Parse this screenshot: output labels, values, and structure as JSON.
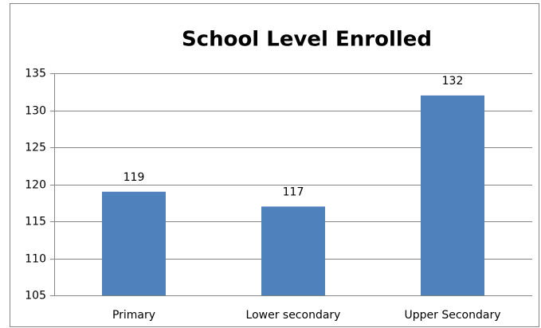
{
  "chart_data": {
    "type": "bar",
    "title": "School Level Enrolled",
    "categories": [
      "Primary",
      "Lower secondary",
      "Upper Secondary"
    ],
    "values": [
      119,
      117,
      132
    ],
    "color": "#4f81bd",
    "ylim": [
      105,
      135
    ],
    "yticks": [
      105,
      110,
      115,
      120,
      125,
      130,
      135
    ],
    "grid": true
  }
}
